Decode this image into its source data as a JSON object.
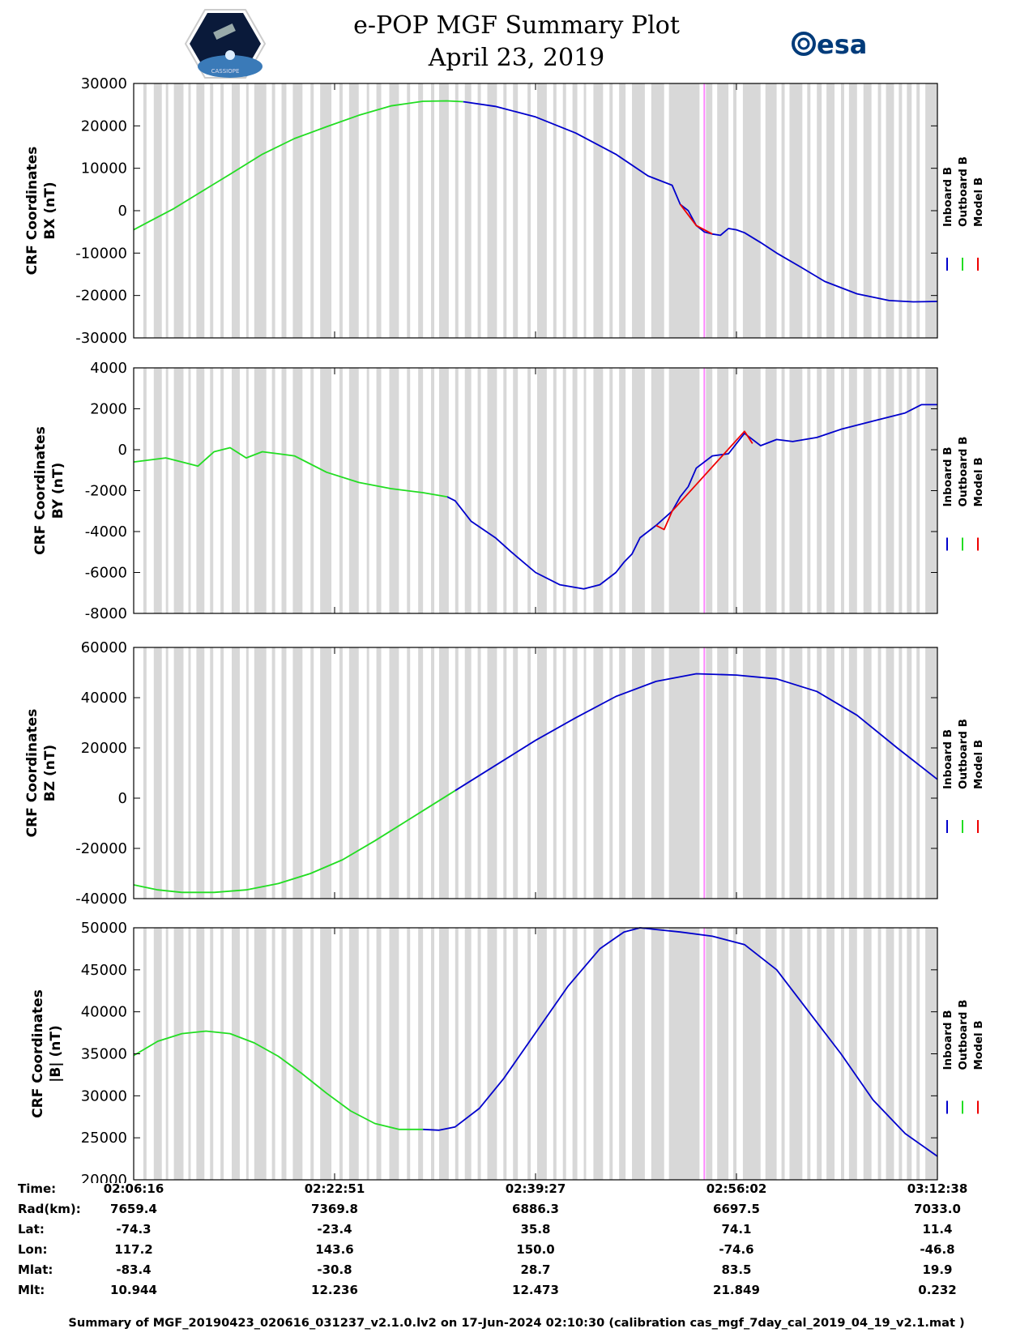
{
  "header": {
    "title": "e-POP MGF Summary Plot",
    "date": "April 23, 2019",
    "esa_logo_text": "esa",
    "cassiope_logo_text": "CASSIOPE"
  },
  "colors": {
    "inboard": "#0000cc",
    "outboard": "#22dd22",
    "model": "#ee0000",
    "gap": "#d8d8d8",
    "event_marker": "#ff88ff"
  },
  "chart_data": [
    {
      "type": "line",
      "title": "",
      "ylabel_line1": "CRF Coordinates",
      "ylabel_line2": "BX (nT)",
      "ylim": [
        -30000,
        30000
      ],
      "yticks": [
        -30000,
        -20000,
        -10000,
        0,
        10000,
        20000,
        30000
      ],
      "legend": [
        "Inboard B",
        "Outboard B",
        "Model B"
      ],
      "series": [
        {
          "name": "Inboard B",
          "x": [
            0.41,
            0.45,
            0.5,
            0.55,
            0.6,
            0.64,
            0.67,
            0.68,
            0.69,
            0.7,
            0.71,
            0.72,
            0.73,
            0.74,
            0.75,
            0.76,
            0.78,
            0.8,
            0.83,
            0.86,
            0.9,
            0.94,
            0.97,
            1.0
          ],
          "values": [
            25700,
            24600,
            22100,
            18300,
            13300,
            8200,
            6000,
            1500,
            0,
            -3500,
            -5000,
            -5500,
            -5800,
            -4200,
            -4500,
            -5200,
            -7500,
            -10000,
            -13300,
            -16700,
            -19600,
            -21200,
            -21500,
            -21400
          ]
        },
        {
          "name": "Outboard B",
          "x": [
            0,
            0.02,
            0.05,
            0.08,
            0.12,
            0.16,
            0.2,
            0.24,
            0.28,
            0.32,
            0.36,
            0.39,
            0.41
          ],
          "values": [
            -4500,
            -2500,
            500,
            4000,
            8600,
            13300,
            17000,
            19800,
            22500,
            24700,
            25800,
            25900,
            25700
          ]
        },
        {
          "name": "Model B",
          "x": [
            0.68,
            0.7,
            0.72
          ],
          "values": [
            1500,
            -3500,
            -5500
          ]
        }
      ],
      "gap_marker": 0.71
    },
    {
      "type": "line",
      "ylabel_line1": "CRF Coordinates",
      "ylabel_line2": "BY (nT)",
      "ylim": [
        -8000,
        4000
      ],
      "yticks": [
        -8000,
        -6000,
        -4000,
        -2000,
        0,
        2000,
        4000
      ],
      "legend": [
        "Inboard B",
        "Outboard B",
        "Model B"
      ],
      "series": [
        {
          "name": "Inboard B",
          "x": [
            0.39,
            0.4,
            0.42,
            0.45,
            0.47,
            0.5,
            0.53,
            0.56,
            0.58,
            0.6,
            0.61,
            0.62,
            0.63,
            0.65,
            0.67,
            0.68,
            0.69,
            0.7,
            0.72,
            0.74,
            0.76,
            0.78,
            0.8,
            0.82,
            0.85,
            0.88,
            0.92,
            0.96,
            0.98,
            1.0
          ],
          "values": [
            -2300,
            -2500,
            -3500,
            -4300,
            -5000,
            -6000,
            -6600,
            -6800,
            -6600,
            -6000,
            -5500,
            -5100,
            -4300,
            -3700,
            -3000,
            -2300,
            -1800,
            -900,
            -300,
            -200,
            800,
            200,
            500,
            400,
            600,
            1000,
            1400,
            1800,
            2200,
            2200
          ]
        },
        {
          "name": "Outboard B",
          "x": [
            0,
            0.02,
            0.04,
            0.06,
            0.08,
            0.1,
            0.12,
            0.14,
            0.16,
            0.18,
            0.2,
            0.24,
            0.28,
            0.32,
            0.36,
            0.39
          ],
          "values": [
            -600,
            -500,
            -400,
            -600,
            -800,
            -100,
            100,
            -400,
            -100,
            -200,
            -300,
            -1100,
            -1600,
            -1900,
            -2100,
            -2300
          ]
        },
        {
          "name": "Model B",
          "x": [
            0.65,
            0.66,
            0.67,
            0.76,
            0.77
          ],
          "values": [
            -3700,
            -3900,
            -3000,
            900,
            300
          ]
        }
      ],
      "gap_marker": 0.71
    },
    {
      "type": "line",
      "ylabel_line1": "CRF Coordinates",
      "ylabel_line2": "BZ (nT)",
      "ylim": [
        -40000,
        60000
      ],
      "yticks": [
        -40000,
        -20000,
        0,
        20000,
        40000,
        60000
      ],
      "legend": [
        "Inboard B",
        "Outboard B",
        "Model B"
      ],
      "series": [
        {
          "name": "Inboard B",
          "x": [
            0.4,
            0.45,
            0.5,
            0.55,
            0.6,
            0.65,
            0.7,
            0.75,
            0.8,
            0.85,
            0.9,
            0.95,
            1.0
          ],
          "values": [
            3000,
            13000,
            23000,
            32000,
            40500,
            46500,
            49500,
            49000,
            47500,
            42500,
            33000,
            20000,
            7500
          ]
        },
        {
          "name": "Outboard B",
          "x": [
            0,
            0.03,
            0.06,
            0.1,
            0.14,
            0.18,
            0.22,
            0.26,
            0.3,
            0.34,
            0.37,
            0.4
          ],
          "values": [
            -34500,
            -36500,
            -37500,
            -37500,
            -36500,
            -34000,
            -30000,
            -24500,
            -17000,
            -9000,
            -3000,
            3000
          ]
        }
      ],
      "gap_marker": 0.71
    },
    {
      "type": "line",
      "ylabel_line1": "CRF Coordinates",
      "ylabel_line2": "|B| (nT)",
      "ylim": [
        20000,
        50000
      ],
      "yticks": [
        20000,
        25000,
        30000,
        35000,
        40000,
        45000,
        50000
      ],
      "legend": [
        "Inboard B",
        "Outboard B",
        "Model B"
      ],
      "series": [
        {
          "name": "Inboard B",
          "x": [
            0.36,
            0.38,
            0.4,
            0.43,
            0.46,
            0.5,
            0.54,
            0.58,
            0.61,
            0.63,
            0.65,
            0.68,
            0.72,
            0.76,
            0.8,
            0.84,
            0.88,
            0.92,
            0.96,
            1.0
          ],
          "values": [
            26000,
            25900,
            26300,
            28500,
            32000,
            37500,
            43000,
            47500,
            49500,
            50000,
            49800,
            49500,
            49000,
            48000,
            45000,
            40000,
            35000,
            29500,
            25500,
            22800
          ]
        },
        {
          "name": "Outboard B",
          "x": [
            0,
            0.03,
            0.06,
            0.09,
            0.12,
            0.15,
            0.18,
            0.21,
            0.24,
            0.27,
            0.3,
            0.33,
            0.36
          ],
          "values": [
            34800,
            36500,
            37400,
            37700,
            37400,
            36300,
            34700,
            32600,
            30300,
            28200,
            26700,
            26000,
            26000
          ]
        }
      ],
      "gap_marker": 0.71
    }
  ],
  "gap_bands": [
    [
      0.012,
      0.016
    ],
    [
      0.025,
      0.035
    ],
    [
      0.04,
      0.043
    ],
    [
      0.05,
      0.062
    ],
    [
      0.068,
      0.071
    ],
    [
      0.078,
      0.088
    ],
    [
      0.095,
      0.099
    ],
    [
      0.108,
      0.112
    ],
    [
      0.122,
      0.132
    ],
    [
      0.14,
      0.143
    ],
    [
      0.15,
      0.165
    ],
    [
      0.172,
      0.176
    ],
    [
      0.184,
      0.19
    ],
    [
      0.198,
      0.21
    ],
    [
      0.22,
      0.224
    ],
    [
      0.232,
      0.246
    ],
    [
      0.256,
      0.26
    ],
    [
      0.268,
      0.28
    ],
    [
      0.29,
      0.293
    ],
    [
      0.302,
      0.308
    ],
    [
      0.318,
      0.33
    ],
    [
      0.34,
      0.344
    ],
    [
      0.354,
      0.36
    ],
    [
      0.37,
      0.374
    ],
    [
      0.38,
      0.392
    ],
    [
      0.4,
      0.404
    ],
    [
      0.412,
      0.42
    ],
    [
      0.428,
      0.432
    ],
    [
      0.44,
      0.452
    ],
    [
      0.46,
      0.464
    ],
    [
      0.472,
      0.478
    ],
    [
      0.49,
      0.494
    ],
    [
      0.502,
      0.514
    ],
    [
      0.522,
      0.526
    ],
    [
      0.534,
      0.538
    ],
    [
      0.546,
      0.552
    ],
    [
      0.56,
      0.563
    ],
    [
      0.572,
      0.584
    ],
    [
      0.592,
      0.596
    ],
    [
      0.604,
      0.612
    ],
    [
      0.62,
      0.636
    ],
    [
      0.644,
      0.66
    ],
    [
      0.666,
      0.704
    ],
    [
      0.712,
      0.72
    ],
    [
      0.726,
      0.74
    ],
    [
      0.746,
      0.75
    ],
    [
      0.758,
      0.78
    ],
    [
      0.786,
      0.8
    ],
    [
      0.806,
      0.81
    ],
    [
      0.816,
      0.832
    ],
    [
      0.838,
      0.842
    ],
    [
      0.85,
      0.856
    ],
    [
      0.862,
      0.872
    ],
    [
      0.88,
      0.884
    ],
    [
      0.89,
      0.9
    ],
    [
      0.908,
      0.918
    ],
    [
      0.926,
      0.93
    ],
    [
      0.936,
      0.946
    ],
    [
      0.952,
      0.956
    ],
    [
      0.962,
      0.968
    ],
    [
      0.974,
      0.978
    ],
    [
      0.985,
      1.0
    ]
  ],
  "x_ticks": [
    "02:06:16",
    "02:22:51",
    "02:39:27",
    "02:56:02",
    "03:12:38"
  ],
  "info_table": {
    "row_labels": [
      "Time:",
      "Rad(km):",
      "Lat:",
      "Lon:",
      "Mlat:",
      "Mlt:"
    ],
    "columns": [
      [
        "02:06:16",
        "7659.4",
        "-74.3",
        "117.2",
        "-83.4",
        "10.944"
      ],
      [
        "02:22:51",
        "7369.8",
        "-23.4",
        "143.6",
        "-30.8",
        "12.236"
      ],
      [
        "02:39:27",
        "6886.3",
        "35.8",
        "150.0",
        "28.7",
        "12.473"
      ],
      [
        "02:56:02",
        "6697.5",
        "74.1",
        "-74.6",
        "83.5",
        "21.849"
      ],
      [
        "03:12:38",
        "7033.0",
        "11.4",
        "-46.8",
        "19.9",
        "0.232"
      ]
    ]
  },
  "footer": "Summary of MGF_20190423_020616_031237_v2.1.0.lv2 on 17-Jun-2024 02:10:30 (calibration cas_mgf_7day_cal_2019_04_19_v2.1.mat )"
}
